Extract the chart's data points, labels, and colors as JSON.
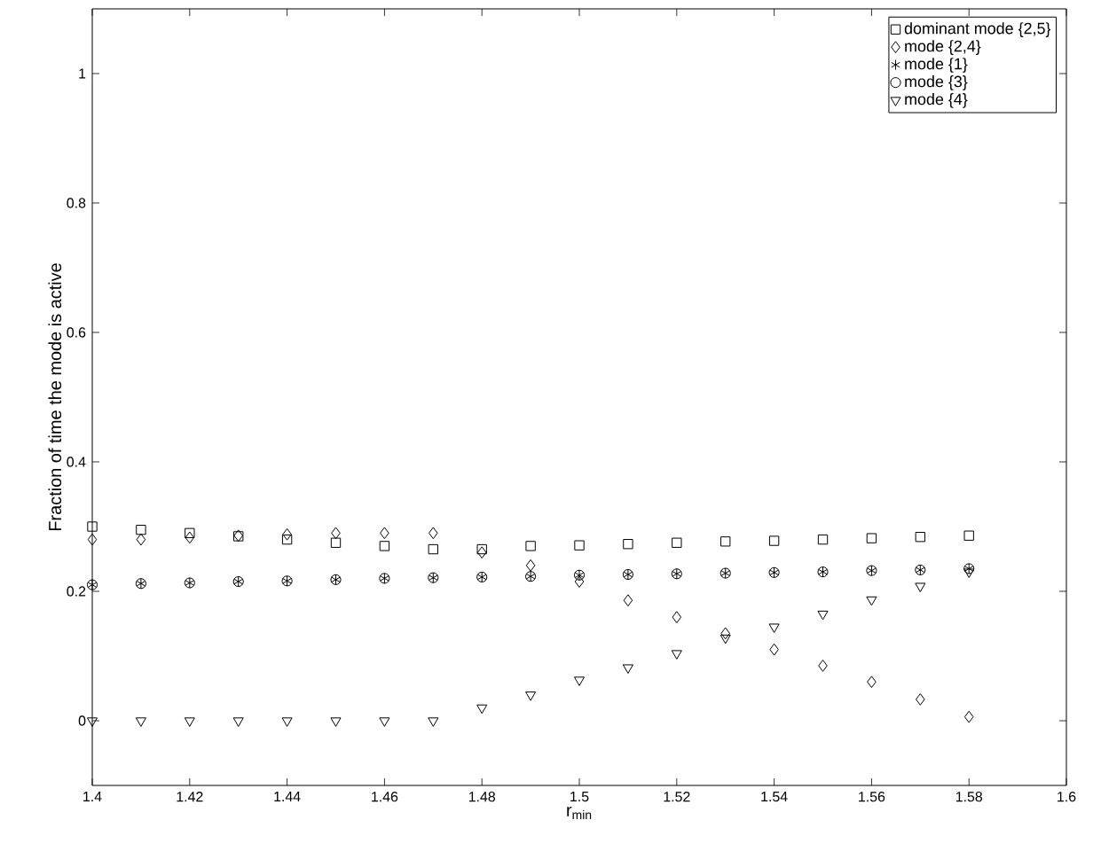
{
  "chart_data": {
    "type": "scatter",
    "xlabel": "r$_{min}$",
    "ylabel": "Fraction of time the mode is active",
    "x": [
      1.4,
      1.41,
      1.42,
      1.43,
      1.44,
      1.45,
      1.46,
      1.47,
      1.48,
      1.49,
      1.5,
      1.51,
      1.52,
      1.53,
      1.54,
      1.55,
      1.56,
      1.57,
      1.58
    ],
    "series": [
      {
        "name": "dominant mode {2,5}",
        "color": "#000000",
        "marker": "square",
        "values": [
          0.3,
          0.295,
          0.29,
          0.285,
          0.28,
          0.275,
          0.27,
          0.265,
          0.265,
          0.27,
          0.271,
          0.273,
          0.275,
          0.277,
          0.278,
          0.28,
          0.282,
          0.284,
          0.286
        ]
      },
      {
        "name": "mode {2,4}",
        "color": "#000000",
        "marker": "diamond",
        "values": [
          0.28,
          0.28,
          0.283,
          0.286,
          0.288,
          0.29,
          0.29,
          0.29,
          0.26,
          0.24,
          0.215,
          0.186,
          0.16,
          0.135,
          0.11,
          0.085,
          0.06,
          0.033,
          0.006
        ]
      },
      {
        "name": "mode {1}",
        "color": "#000000",
        "marker": "cross",
        "values": [
          0.21,
          0.212,
          0.213,
          0.215,
          0.216,
          0.218,
          0.22,
          0.221,
          0.222,
          0.223,
          0.225,
          0.226,
          0.227,
          0.228,
          0.229,
          0.23,
          0.232,
          0.233,
          0.235
        ]
      },
      {
        "name": "mode {3}",
        "color": "#000000",
        "marker": "circle",
        "values": [
          0.21,
          0.212,
          0.213,
          0.215,
          0.216,
          0.218,
          0.22,
          0.221,
          0.222,
          0.223,
          0.225,
          0.226,
          0.227,
          0.228,
          0.229,
          0.23,
          0.232,
          0.233,
          0.235
        ]
      },
      {
        "name": "mode {4}",
        "color": "#000000",
        "marker": "triangle",
        "values": [
          0,
          0,
          0,
          0,
          0,
          0,
          0,
          0,
          0.02,
          0.04,
          0.063,
          0.082,
          0.104,
          0.128,
          0.145,
          0.165,
          0.187,
          0.208,
          0.23
        ]
      }
    ],
    "xlim": [
      1.4,
      1.6
    ],
    "ylim": [
      -0.1,
      1.1
    ],
    "xticks": [
      {
        "value": 1.4,
        "label": "1.4"
      },
      {
        "value": 1.42,
        "label": "1.42"
      },
      {
        "value": 1.44,
        "label": "1.44"
      },
      {
        "value": 1.46,
        "label": "1.46"
      },
      {
        "value": 1.48,
        "label": "1.48"
      },
      {
        "value": 1.5,
        "label": "1.5"
      },
      {
        "value": 1.52,
        "label": "1.52"
      },
      {
        "value": 1.54,
        "label": "1.54"
      },
      {
        "value": 1.56,
        "label": "1.56"
      },
      {
        "value": 1.58,
        "label": "1.58"
      },
      {
        "value": 1.6,
        "label": "1.6"
      }
    ],
    "yticks": [
      0,
      0.2,
      0.4,
      0.6,
      0.8,
      1
    ],
    "legend": "top right",
    "grid": false
  }
}
